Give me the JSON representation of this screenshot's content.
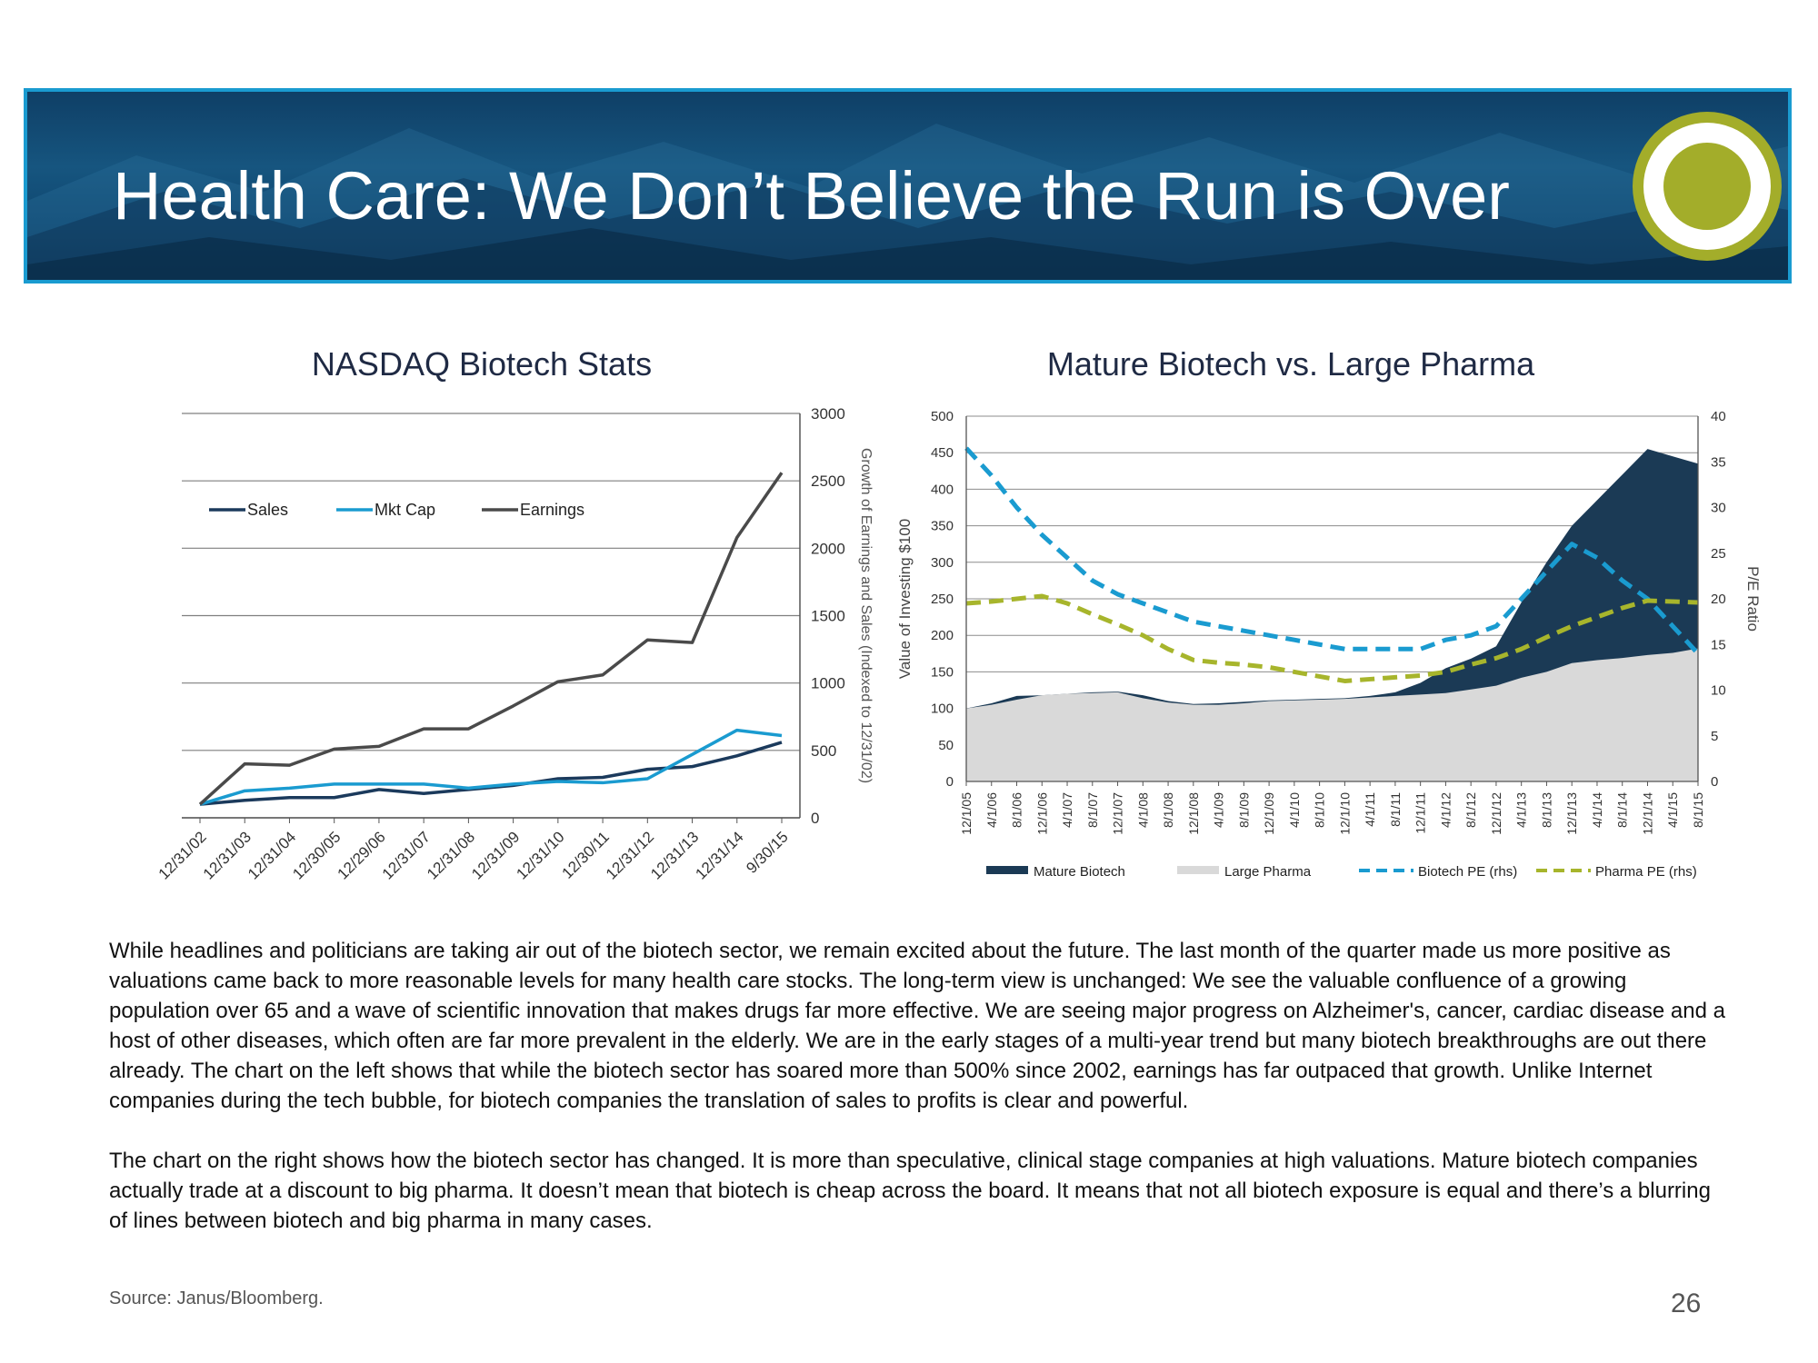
{
  "slide": {
    "title": "Health Care: We Don’t Believe the Run is Over",
    "page_number": "26",
    "source": "Source: Janus/Bloomberg.",
    "paragraphs": [
      "While headlines and politicians are taking air out of the biotech sector, we remain excited about the future. The last month of the quarter made us more positive as valuations came back to more reasonable levels for many health care stocks. The long-term view is unchanged: We see the valuable confluence of a growing population over 65 and a wave of scientific innovation that makes drugs far more effective. We are seeing major progress on Alzheimer's, cancer, cardiac disease and a host of other diseases, which often are far more prevalent in the elderly. We are in the early stages of a multi-year trend but many biotech breakthroughs are out there already. The chart on the left shows that while the biotech sector has soared more than 500% since 2002, earnings has far outpaced that growth. Unlike Internet companies during the tech bubble, for biotech companies the translation of sales to profits is clear and powerful.",
      "The chart on the right shows how the biotech sector has changed. It is more than speculative, clinical stage companies at high valuations. Mature biotech companies actually trade at a discount to big pharma. It doesn’t mean that biotech is cheap across the board. It means that not all biotech exposure is equal and there’s a blurring of lines between biotech and big pharma in many cases."
    ],
    "colors": {
      "banner_border": "#1a9bd0",
      "banner_blue": "#16557f",
      "logo_green": "#a3ad2a"
    }
  },
  "chart_data": [
    {
      "type": "line",
      "title": "NASDAQ Biotech Stats",
      "ylabel": "Growth of Earnings and Sales (Indexed to 12/31/02)",
      "ylim": [
        0,
        3000
      ],
      "yticks": [
        0,
        500,
        1000,
        1500,
        2000,
        2500,
        3000
      ],
      "y_axis_side": "right",
      "grid": true,
      "legend_placement": "top-left",
      "categories": [
        "12/31/02",
        "12/31/03",
        "12/31/04",
        "12/30/05",
        "12/29/06",
        "12/31/07",
        "12/31/08",
        "12/31/09",
        "12/31/10",
        "12/30/11",
        "12/31/12",
        "12/31/13",
        "12/31/14",
        "9/30/15"
      ],
      "series": [
        {
          "name": "Sales",
          "color": "#1b3a5c",
          "values": [
            100,
            130,
            150,
            150,
            210,
            180,
            210,
            240,
            290,
            300,
            360,
            380,
            460,
            560
          ]
        },
        {
          "name": "Mkt Cap",
          "color": "#1a9bd0",
          "values": [
            100,
            200,
            220,
            250,
            250,
            250,
            220,
            250,
            270,
            260,
            290,
            470,
            650,
            610
          ]
        },
        {
          "name": "Earnings",
          "color": "#4a4a4a",
          "values": [
            100,
            400,
            390,
            510,
            530,
            660,
            660,
            830,
            1010,
            1060,
            1320,
            1300,
            2080,
            2560
          ]
        }
      ]
    },
    {
      "type": "area",
      "title": "Mature Biotech vs. Large Pharma",
      "ylabel": "Value of Investing $100",
      "ylabel_right": "P/E Ratio",
      "ylim": [
        0,
        500
      ],
      "ylim_right": [
        0,
        40
      ],
      "yticks": [
        0,
        50,
        100,
        150,
        200,
        250,
        300,
        350,
        400,
        450,
        500
      ],
      "yticks_right": [
        0,
        5,
        10,
        15,
        20,
        25,
        30,
        35,
        40
      ],
      "grid": true,
      "legend_placement": "bottom",
      "categories": [
        "12/1/05",
        "4/1/06",
        "8/1/06",
        "12/1/06",
        "4/1/07",
        "8/1/07",
        "12/1/07",
        "4/1/08",
        "8/1/08",
        "12/1/08",
        "4/1/09",
        "8/1/09",
        "12/1/09",
        "4/1/10",
        "8/1/10",
        "12/1/10",
        "4/1/11",
        "8/1/11",
        "12/1/11",
        "4/1/12",
        "8/1/12",
        "12/1/12",
        "4/1/13",
        "8/1/13",
        "12/1/13",
        "4/1/14",
        "8/1/14",
        "12/1/14",
        "4/1/15",
        "8/1/15"
      ],
      "series": [
        {
          "name": "Mature Biotech",
          "kind": "area",
          "axis": "left",
          "color": "#1b3a55",
          "values": [
            100,
            107,
            117,
            118,
            120,
            122,
            123,
            118,
            110,
            106,
            107,
            109,
            111,
            112,
            113,
            114,
            117,
            122,
            135,
            155,
            168,
            185,
            245,
            300,
            350,
            385,
            420,
            455,
            445,
            435
          ]
        },
        {
          "name": "Large Pharma",
          "kind": "area",
          "axis": "left",
          "color": "#d9d9d9",
          "values": [
            100,
            105,
            112,
            118,
            120,
            121,
            122,
            114,
            108,
            105,
            105,
            107,
            110,
            111,
            112,
            113,
            115,
            117,
            119,
            121,
            126,
            131,
            142,
            150,
            162,
            166,
            169,
            173,
            176,
            182
          ]
        },
        {
          "name": "Biotech PE (rhs)",
          "kind": "line",
          "axis": "right",
          "color": "#1a9bd0",
          "dash": true,
          "values": [
            36.5,
            33.5,
            30,
            27,
            24.5,
            22,
            20.5,
            19.5,
            18.5,
            17.5,
            17,
            16.5,
            16,
            15.5,
            15,
            14.5,
            14.5,
            14.5,
            14.5,
            15.5,
            16,
            17,
            20,
            23,
            26,
            24.5,
            22,
            20,
            17,
            14
          ]
        },
        {
          "name": "Pharma PE (rhs)",
          "kind": "line",
          "axis": "right",
          "color": "#a7b52c",
          "dash": true,
          "values": [
            19.5,
            19.7,
            20,
            20.3,
            19.5,
            18.3,
            17.2,
            16,
            14.5,
            13.3,
            13,
            12.8,
            12.5,
            12,
            11.5,
            11,
            11.2,
            11.4,
            11.6,
            12,
            12.8,
            13.5,
            14.5,
            15.8,
            17,
            18,
            19,
            19.8,
            19.7,
            19.6
          ]
        }
      ]
    }
  ]
}
